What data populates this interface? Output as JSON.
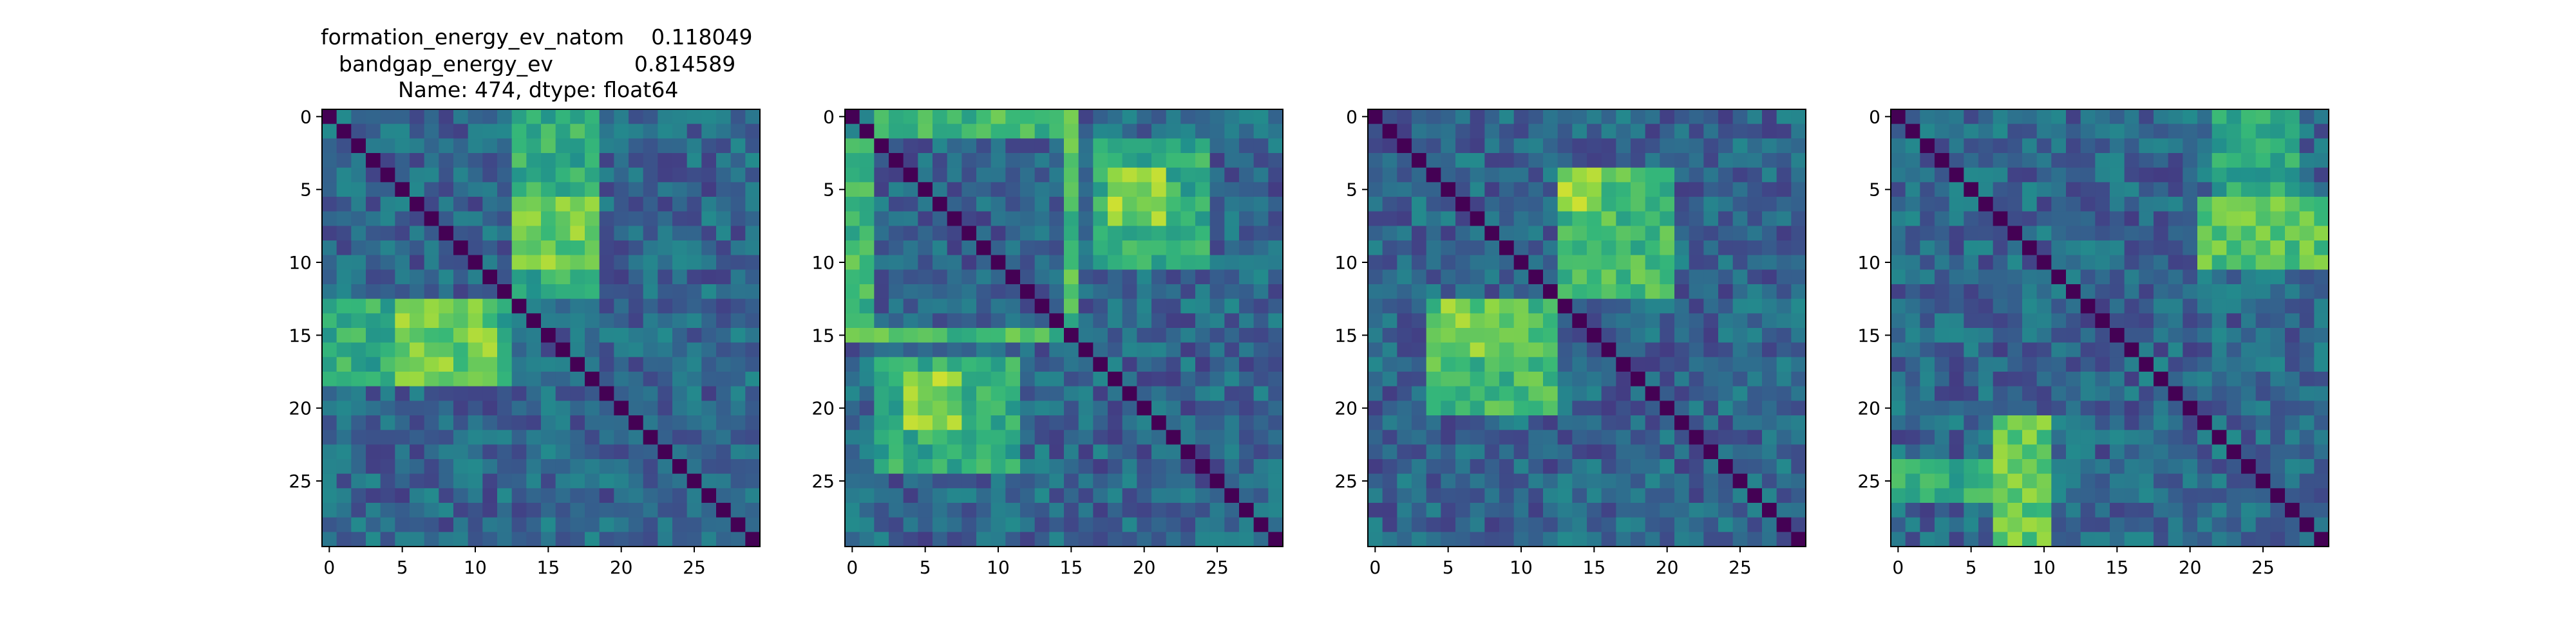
{
  "figure": {
    "title_lines": [
      "formation_energy_ev_natom    0.118049",
      "bandgap_energy_ev            0.814589",
      "Name: 474, dtype: float64"
    ]
  },
  "chart_data": [
    {
      "type": "heatmap",
      "size": 30,
      "colormap": "viridis",
      "xticks": [
        0,
        5,
        10,
        15,
        20,
        25
      ],
      "yticks": [
        0,
        5,
        10,
        15,
        20,
        25
      ],
      "xlim": [
        -0.5,
        29.5
      ],
      "ylim": [
        29.5,
        -0.5
      ],
      "diagonal_value": 0,
      "clusters": [
        {
          "rows": [
            13,
            18
          ],
          "cols": [
            0,
            12
          ],
          "value": 0.8
        },
        {
          "rows": [
            0,
            12
          ],
          "cols": [
            13,
            18
          ],
          "value": 0.8
        },
        {
          "rows": [
            6,
            10
          ],
          "cols": [
            13,
            18
          ],
          "value": 0.92
        },
        {
          "rows": [
            13,
            18
          ],
          "cols": [
            5,
            11
          ],
          "value": 0.92
        }
      ]
    },
    {
      "type": "heatmap",
      "size": 30,
      "colormap": "viridis",
      "xticks": [
        0,
        5,
        10,
        15,
        20,
        25
      ],
      "yticks": [
        0,
        5,
        10,
        15,
        20,
        25
      ],
      "xlim": [
        -0.5,
        29.5
      ],
      "ylim": [
        29.5,
        -0.5
      ],
      "diagonal_value": 0,
      "clusters": [
        {
          "rows": [
            17,
            24
          ],
          "cols": [
            2,
            11
          ],
          "value": 0.8
        },
        {
          "rows": [
            2,
            10
          ],
          "cols": [
            17,
            24
          ],
          "value": 0.8
        },
        {
          "rows": [
            18,
            21
          ],
          "cols": [
            4,
            7
          ],
          "value": 0.95
        },
        {
          "rows": [
            4,
            7
          ],
          "cols": [
            18,
            21
          ],
          "value": 0.95
        },
        {
          "rows": [
            0,
            1
          ],
          "cols": [
            2,
            15
          ],
          "value": 0.85
        },
        {
          "rows": [
            2,
            15
          ],
          "cols": [
            0,
            1
          ],
          "value": 0.85
        },
        {
          "rows": [
            15,
            15
          ],
          "cols": [
            0,
            14
          ],
          "value": 0.85
        },
        {
          "rows": [
            0,
            14
          ],
          "cols": [
            15,
            15
          ],
          "value": 0.85
        }
      ]
    },
    {
      "type": "heatmap",
      "size": 30,
      "colormap": "viridis",
      "xticks": [
        0,
        5,
        10,
        15,
        20,
        25
      ],
      "yticks": [
        0,
        5,
        10,
        15,
        20,
        25
      ],
      "xlim": [
        -0.5,
        29.5
      ],
      "ylim": [
        29.5,
        -0.5
      ],
      "diagonal_value": 0,
      "clusters": [
        {
          "rows": [
            4,
            12
          ],
          "cols": [
            13,
            20
          ],
          "value": 0.85
        },
        {
          "rows": [
            13,
            20
          ],
          "cols": [
            4,
            12
          ],
          "value": 0.85
        },
        {
          "rows": [
            4,
            6
          ],
          "cols": [
            13,
            15
          ],
          "value": 0.95
        },
        {
          "rows": [
            13,
            16
          ],
          "cols": [
            5,
            10
          ],
          "value": 0.92
        }
      ]
    },
    {
      "type": "heatmap",
      "size": 30,
      "colormap": "viridis",
      "xticks": [
        0,
        5,
        10,
        15,
        20,
        25
      ],
      "yticks": [
        0,
        5,
        10,
        15,
        20,
        25
      ],
      "xlim": [
        -0.5,
        29.5
      ],
      "ylim": [
        29.5,
        -0.5
      ],
      "diagonal_value": 0,
      "clusters": [
        {
          "rows": [
            6,
            10
          ],
          "cols": [
            21,
            29
          ],
          "value": 0.88
        },
        {
          "rows": [
            0,
            5
          ],
          "cols": [
            22,
            27
          ],
          "value": 0.78
        },
        {
          "rows": [
            21,
            29
          ],
          "cols": [
            7,
            10
          ],
          "value": 0.9
        },
        {
          "rows": [
            24,
            26
          ],
          "cols": [
            0,
            6
          ],
          "value": 0.8
        }
      ]
    }
  ]
}
